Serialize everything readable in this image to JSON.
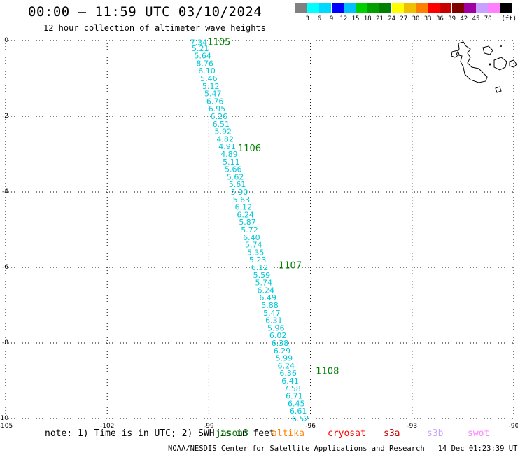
{
  "title": "00:00 – 11:59 UTC 03/10/2024",
  "subtitle": "12 hour collection of altimeter wave heights",
  "colorbar": {
    "colors": [
      "#808080",
      "#00ffff",
      "#00d8ff",
      "#0000ff",
      "#00c0ff",
      "#00d000",
      "#00a000",
      "#008000",
      "#ffff00",
      "#f0c000",
      "#ff8000",
      "#ff0000",
      "#c80000",
      "#800000",
      "#a000a0",
      "#c8a0ff",
      "#ff80ff",
      "#000000"
    ],
    "labels": [
      "3",
      "6",
      "9",
      "12",
      "15",
      "18",
      "21",
      "24",
      "27",
      "30",
      "33",
      "36",
      "39",
      "42",
      "45",
      "70"
    ],
    "unit": "(ft)"
  },
  "chart_data": {
    "type": "scatter",
    "xlim": [
      -105,
      -90
    ],
    "ylim": [
      -10,
      0
    ],
    "x_ticks": [
      "-105",
      "-102",
      "-99",
      "-96",
      "-93",
      "-90"
    ],
    "y_ticks": [
      "0",
      "-2",
      "-4",
      "-6",
      "-8",
      "-10"
    ],
    "grid": "dotted",
    "points_label_color": "#00c8d8",
    "points": [
      {
        "lon": -99.3,
        "lat": -0.05,
        "v": "7.34"
      },
      {
        "lon": -99.25,
        "lat": -0.2,
        "v": "5.21"
      },
      {
        "lon": -99.18,
        "lat": -0.4,
        "v": "5.64"
      },
      {
        "lon": -99.12,
        "lat": -0.6,
        "v": "8.76"
      },
      {
        "lon": -99.06,
        "lat": -0.8,
        "v": "6.10"
      },
      {
        "lon": -99.0,
        "lat": -1.0,
        "v": "5.46"
      },
      {
        "lon": -98.94,
        "lat": -1.2,
        "v": "5.12"
      },
      {
        "lon": -98.88,
        "lat": -1.4,
        "v": "5.47"
      },
      {
        "lon": -98.82,
        "lat": -1.6,
        "v": "6.76"
      },
      {
        "lon": -98.76,
        "lat": -1.8,
        "v": "6.95"
      },
      {
        "lon": -98.7,
        "lat": -2.0,
        "v": "6.26"
      },
      {
        "lon": -98.64,
        "lat": -2.2,
        "v": "6.51"
      },
      {
        "lon": -98.58,
        "lat": -2.4,
        "v": "5.92"
      },
      {
        "lon": -98.52,
        "lat": -2.6,
        "v": "4.82"
      },
      {
        "lon": -98.46,
        "lat": -2.8,
        "v": "4.91"
      },
      {
        "lon": -98.4,
        "lat": -3.0,
        "v": "4.89"
      },
      {
        "lon": -98.34,
        "lat": -3.2,
        "v": "5.11"
      },
      {
        "lon": -98.28,
        "lat": -3.4,
        "v": "5.66"
      },
      {
        "lon": -98.22,
        "lat": -3.6,
        "v": "5.62"
      },
      {
        "lon": -98.16,
        "lat": -3.8,
        "v": "5.61"
      },
      {
        "lon": -98.1,
        "lat": -4.0,
        "v": "5.90"
      },
      {
        "lon": -98.04,
        "lat": -4.2,
        "v": "5.63"
      },
      {
        "lon": -97.98,
        "lat": -4.4,
        "v": "6.12"
      },
      {
        "lon": -97.92,
        "lat": -4.6,
        "v": "6.24"
      },
      {
        "lon": -97.86,
        "lat": -4.8,
        "v": "5.87"
      },
      {
        "lon": -97.8,
        "lat": -5.0,
        "v": "5.72"
      },
      {
        "lon": -97.74,
        "lat": -5.2,
        "v": "6.40"
      },
      {
        "lon": -97.68,
        "lat": -5.4,
        "v": "5.74"
      },
      {
        "lon": -97.62,
        "lat": -5.6,
        "v": "5.35"
      },
      {
        "lon": -97.56,
        "lat": -5.8,
        "v": "5.23"
      },
      {
        "lon": -97.5,
        "lat": -6.0,
        "v": "6.12"
      },
      {
        "lon": -97.44,
        "lat": -6.2,
        "v": "5.59"
      },
      {
        "lon": -97.38,
        "lat": -6.4,
        "v": "5.74"
      },
      {
        "lon": -97.32,
        "lat": -6.6,
        "v": "6.24"
      },
      {
        "lon": -97.26,
        "lat": -6.8,
        "v": "6.49"
      },
      {
        "lon": -97.2,
        "lat": -7.0,
        "v": "5.88"
      },
      {
        "lon": -97.14,
        "lat": -7.2,
        "v": "5.47"
      },
      {
        "lon": -97.08,
        "lat": -7.4,
        "v": "6.31"
      },
      {
        "lon": -97.02,
        "lat": -7.6,
        "v": "5.96"
      },
      {
        "lon": -96.96,
        "lat": -7.8,
        "v": "6.02"
      },
      {
        "lon": -96.9,
        "lat": -8.0,
        "v": "6.38"
      },
      {
        "lon": -96.84,
        "lat": -8.2,
        "v": "6.29"
      },
      {
        "lon": -96.78,
        "lat": -8.4,
        "v": "5.99"
      },
      {
        "lon": -96.72,
        "lat": -8.6,
        "v": "6.24"
      },
      {
        "lon": -96.66,
        "lat": -8.8,
        "v": "6.36"
      },
      {
        "lon": -96.6,
        "lat": -9.0,
        "v": "6.41"
      },
      {
        "lon": -96.54,
        "lat": -9.2,
        "v": "7.58"
      },
      {
        "lon": -96.48,
        "lat": -9.4,
        "v": "6.71"
      },
      {
        "lon": -96.42,
        "lat": -9.6,
        "v": "6.45"
      },
      {
        "lon": -96.36,
        "lat": -9.8,
        "v": "6.61"
      },
      {
        "lon": -96.3,
        "lat": -10.0,
        "v": "6.52"
      }
    ],
    "time_markers": [
      {
        "lon": -98.7,
        "lat": -0.05,
        "label": "1105"
      },
      {
        "lon": -97.8,
        "lat": -2.85,
        "label": "1106"
      },
      {
        "lon": -96.6,
        "lat": -5.95,
        "label": "1107"
      },
      {
        "lon": -95.5,
        "lat": -8.75,
        "label": "1108"
      }
    ],
    "marker_color": "#008000"
  },
  "note": "note: 1) Time is in UTC; 2) SWH is in feet",
  "satellites": [
    {
      "name": "jason3",
      "color": "#008000"
    },
    {
      "name": "altika",
      "color": "#ff8000"
    },
    {
      "name": "cryosat",
      "color": "#ff0000"
    },
    {
      "name": "s3a",
      "color": "#c80000"
    },
    {
      "name": "s3b",
      "color": "#c8a0ff"
    },
    {
      "name": "swot",
      "color": "#ff80ff"
    }
  ],
  "footer": "NOAA/NESDIS Center for Satellite Applications and Research   14 Dec 01:23:39 UTC 2024"
}
